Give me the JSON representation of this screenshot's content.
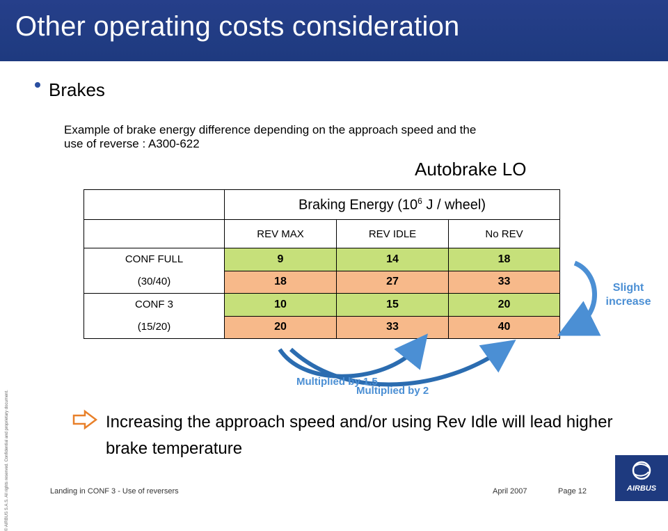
{
  "title": "Other operating costs consideration",
  "bullet": "Brakes",
  "example": "Example of brake energy  difference depending on the approach speed and the use of reverse : A300-622",
  "autobrake": "Autobrake LO",
  "table": {
    "header_main": "Braking Energy    (10",
    "header_sup": "6",
    "header_unit": " J / wheel)",
    "columns": [
      "REV MAX",
      "REV IDLE",
      "No REV"
    ],
    "groups": [
      {
        "conf": "CONF FULL",
        "angle": "(30/40)",
        "rows": [
          [
            "9",
            "14",
            "18"
          ],
          [
            "18",
            "27",
            "33"
          ]
        ]
      },
      {
        "conf": "CONF 3",
        "angle": "(15/20)",
        "rows": [
          [
            "10",
            "15",
            "20"
          ],
          [
            "20",
            "33",
            "40"
          ]
        ]
      }
    ]
  },
  "slight_increase": "Slight increase",
  "multiplied_15": "Multiplied by 1.5",
  "multiplied_2": "Multiplied by 2",
  "conclusion": "Increasing the approach speed and/or using Rev Idle will lead higher brake temperature",
  "copyright": "© AIRBUS S.A.S. All rights reserved. Confidential and proprietary document.",
  "footer": {
    "left": "Landing in CONF 3 - Use of reversers",
    "date": "April 2007",
    "page": "Page 12"
  },
  "logo": "AIRBUS",
  "colors": {
    "title_bar": "#1e3a7f",
    "green_cell": "#c6e07a",
    "orange_cell": "#f7b98a",
    "annotation": "#4b8fd4"
  }
}
